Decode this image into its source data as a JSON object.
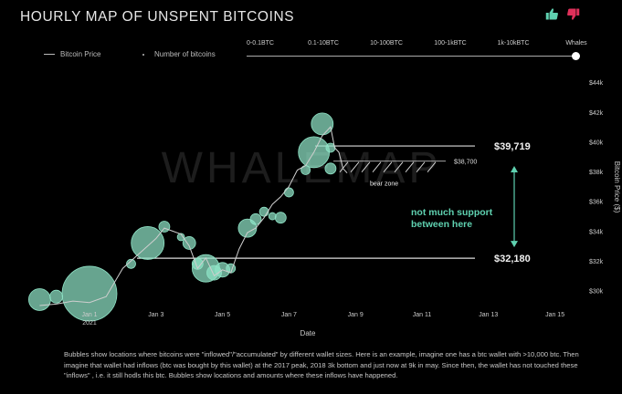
{
  "header": {
    "title": "HOURLY MAP OF UNSPENT BITCOINS",
    "thumb_up_icon": "thumbs-up",
    "thumb_down_icon": "thumbs-down",
    "thumb_up_color": "#5fd1b0",
    "thumb_down_color": "#e0305a"
  },
  "legend": {
    "price_label": "Bitcoin Price",
    "bubbles_label": "Number of bitcoins"
  },
  "slider": {
    "options": [
      "0-0.1BTC",
      "0.1-10BTC",
      "10-100BTC",
      "100-1kBTC",
      "1k-10kBTC",
      "Whales"
    ],
    "selected": "Whales"
  },
  "watermark": "WHALEMAP",
  "colors": {
    "background": "#000000",
    "bubble": "#8fe3c6",
    "price_line": "#cfcfcf",
    "annotation": "#5fd1b0"
  },
  "chart_data": {
    "type": "scatter",
    "xlabel": "Date",
    "ylabel": "Bitcoin Price ($)",
    "x_ticks": [
      "Jan 1\n2021",
      "Jan 3",
      "Jan 5",
      "Jan 7",
      "Jan 9",
      "Jan 11",
      "Jan 13",
      "Jan 15"
    ],
    "y_ticks": [
      "$30k",
      "$32k",
      "$34k",
      "$36k",
      "$38k",
      "$40k",
      "$42k",
      "$44k"
    ],
    "ylim": [
      29000,
      44500
    ],
    "series": [
      {
        "name": "Bitcoin Price",
        "x": [
          "2020-12-30 12:00",
          "2020-12-31 00:00",
          "2020-12-31 12:00",
          "2021-01-01 00:00",
          "2021-01-01 12:00",
          "2021-01-02 00:00",
          "2021-01-02 12:00",
          "2021-01-03 00:00",
          "2021-01-03 06:00",
          "2021-01-03 12:00",
          "2021-01-03 18:00",
          "2021-01-04 00:00",
          "2021-01-04 06:00",
          "2021-01-04 12:00",
          "2021-01-04 18:00",
          "2021-01-05 00:00",
          "2021-01-05 06:00",
          "2021-01-05 12:00",
          "2021-01-05 18:00",
          "2021-01-06 00:00",
          "2021-01-06 06:00",
          "2021-01-06 12:00",
          "2021-01-06 18:00",
          "2021-01-07 00:00",
          "2021-01-07 06:00",
          "2021-01-07 12:00",
          "2021-01-07 18:00",
          "2021-01-08 00:00",
          "2021-01-08 06:00",
          "2021-01-08 09:00",
          "2021-01-08 12:00",
          "2021-01-08 15:00",
          "2021-01-08 18:00"
        ],
        "y": [
          29000,
          29100,
          29300,
          29200,
          29600,
          31500,
          32500,
          33500,
          34200,
          34000,
          33800,
          33000,
          31500,
          32200,
          31000,
          31400,
          31200,
          32800,
          33900,
          34200,
          34900,
          35800,
          36300,
          37000,
          38100,
          38400,
          39300,
          40400,
          41000,
          39600,
          39300,
          38200,
          37900
        ]
      },
      {
        "name": "Number of bitcoins",
        "note": "bubble size proportional to inflows",
        "points": [
          {
            "x": "2020-12-30 12:00",
            "y": 29400,
            "size": 12
          },
          {
            "x": "2020-12-31 00:00",
            "y": 29600,
            "size": 7
          },
          {
            "x": "2021-01-01 00:00",
            "y": 29800,
            "size": 30
          },
          {
            "x": "2021-01-02 06:00",
            "y": 31800,
            "size": 5
          },
          {
            "x": "2021-01-02 18:00",
            "y": 33200,
            "size": 18
          },
          {
            "x": "2021-01-03 06:00",
            "y": 34300,
            "size": 6
          },
          {
            "x": "2021-01-03 18:00",
            "y": 33600,
            "size": 4
          },
          {
            "x": "2021-01-04 00:00",
            "y": 33200,
            "size": 7
          },
          {
            "x": "2021-01-04 06:00",
            "y": 31800,
            "size": 6
          },
          {
            "x": "2021-01-04 12:00",
            "y": 31500,
            "size": 15
          },
          {
            "x": "2021-01-04 18:00",
            "y": 31200,
            "size": 8
          },
          {
            "x": "2021-01-05 00:00",
            "y": 31400,
            "size": 8
          },
          {
            "x": "2021-01-05 06:00",
            "y": 31500,
            "size": 5
          },
          {
            "x": "2021-01-05 18:00",
            "y": 34200,
            "size": 10
          },
          {
            "x": "2021-01-06 00:00",
            "y": 34800,
            "size": 6
          },
          {
            "x": "2021-01-06 06:00",
            "y": 35300,
            "size": 5
          },
          {
            "x": "2021-01-06 12:00",
            "y": 35000,
            "size": 4
          },
          {
            "x": "2021-01-06 18:00",
            "y": 34900,
            "size": 6
          },
          {
            "x": "2021-01-07 00:00",
            "y": 36600,
            "size": 5
          },
          {
            "x": "2021-01-07 12:00",
            "y": 38100,
            "size": 5
          },
          {
            "x": "2021-01-07 18:00",
            "y": 39300,
            "size": 17
          },
          {
            "x": "2021-01-08 00:00",
            "y": 41200,
            "size": 12
          },
          {
            "x": "2021-01-08 06:00",
            "y": 38200,
            "size": 6
          },
          {
            "x": "2021-01-08 06:00",
            "y": 39600,
            "size": 5
          }
        ]
      }
    ],
    "annotations": {
      "resistance": "$39,719",
      "support": "$32,180",
      "bear_level": "$38,700",
      "bear_zone": "bear zone",
      "note_line1": "not much support",
      "note_line2": "between here",
      "resistance_value": 39719,
      "support_value": 32180,
      "bear_value": 38700
    },
    "grid": false,
    "legend_position": "top-left"
  },
  "footnote": "Bubbles show locations where bitcoins were \"inflowed\"/\"accumulated\" by different wallet sizes. Here is an example, imagine one has a btc wallet with >10,000 btc. Then imagine that wallet had inflows (btc was bought by this wallet) at the 2017 peak, 2018 3k bottom and just now at 9k in may. Since then, the wallet has not touched these \"inflows\" , i.e. it still hodls this btc. Bubbles show locations and amounts where these inflows have happened."
}
